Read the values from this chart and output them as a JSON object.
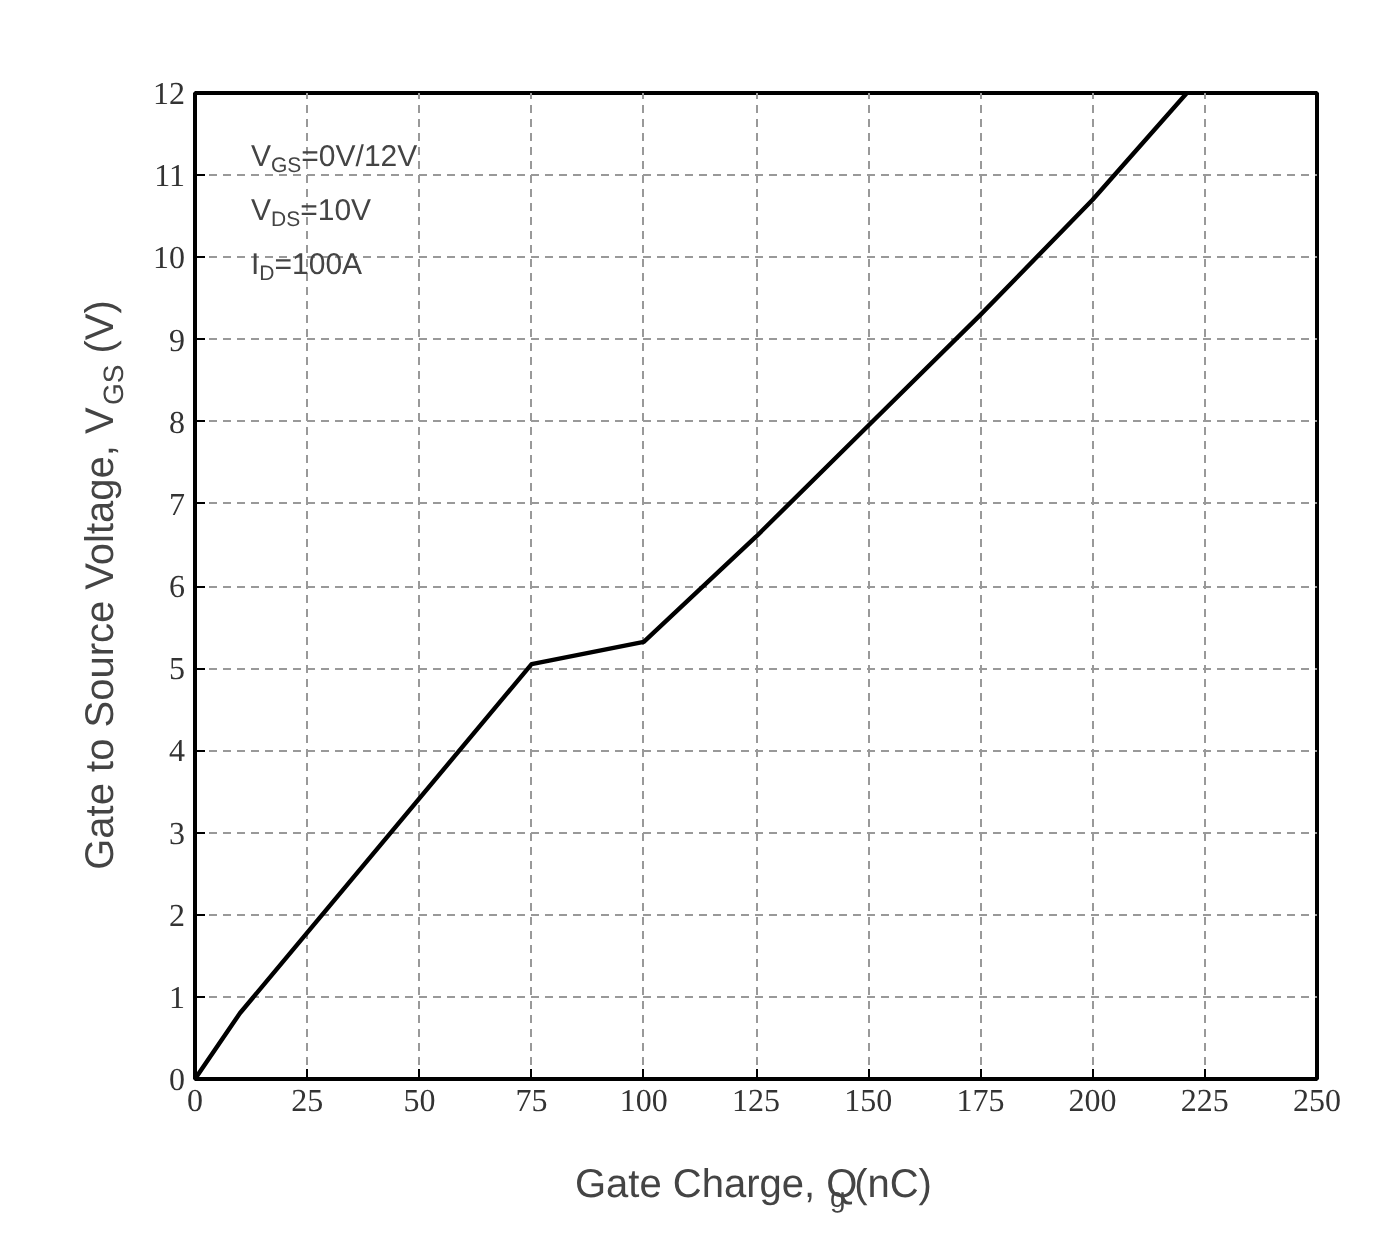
{
  "chart_data": {
    "type": "line",
    "xlabel": "Gate Charge, Q$_{g}$ (nC)",
    "ylabel": "Gate to Source Voltage, V$_{GS}$ (V)",
    "x": [
      0,
      10,
      75,
      100,
      125,
      150,
      175,
      200,
      221
    ],
    "series": [
      {
        "color": "#000000",
        "values": [
          0,
          0.8,
          5.05,
          5.32,
          6.6,
          7.95,
          9.3,
          10.7,
          12
        ]
      }
    ],
    "xlim": [
      0,
      250
    ],
    "ylim": [
      0,
      12
    ],
    "xticks": [
      0,
      25,
      50,
      75,
      100,
      125,
      150,
      175,
      200,
      225,
      250
    ],
    "yticks": [
      0,
      1,
      2,
      3,
      4,
      5,
      6,
      7,
      8,
      9,
      10,
      11,
      12
    ],
    "annotations": [
      "V$_{GS}$=0V/12V",
      "V$_{DS}$=10V",
      "I$_{D}$=100A"
    ],
    "grid": true,
    "marker": "none",
    "line_style": "solid"
  }
}
